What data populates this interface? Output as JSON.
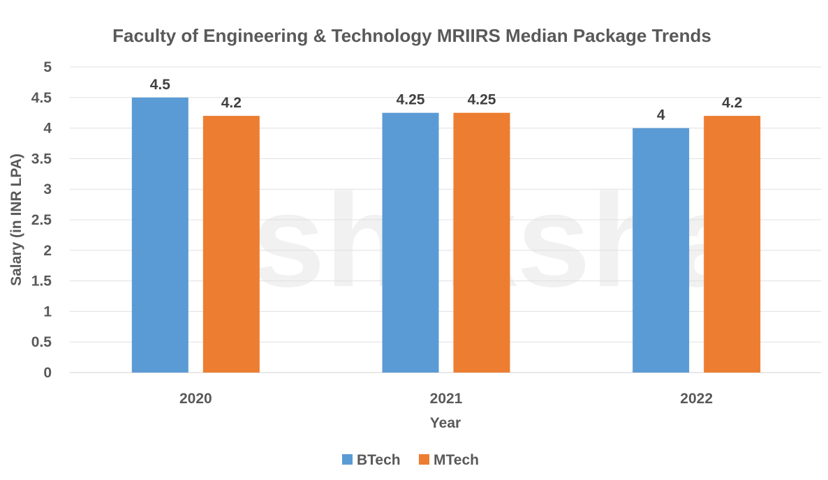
{
  "chart_data": {
    "type": "bar",
    "title": "Faculty of Engineering & Technology MRIIRS Median Package Trends",
    "xlabel": "Year",
    "ylabel": "Salary (in INR LPA)",
    "categories": [
      "2020",
      "2021",
      "2022"
    ],
    "series": [
      {
        "name": "BTech",
        "color": "#5B9BD5",
        "values": [
          4.5,
          4.25,
          4
        ],
        "labels": [
          "4.5",
          "4.25",
          "4"
        ]
      },
      {
        "name": "MTech",
        "color": "#ED7D31",
        "values": [
          4.2,
          4.25,
          4.2
        ],
        "labels": [
          "4.2",
          "4.25",
          "4.2"
        ]
      }
    ],
    "ylim": [
      0,
      5
    ],
    "yticks": [
      "0",
      "0.5",
      "1",
      "1.5",
      "2",
      "2.5",
      "3",
      "3.5",
      "4",
      "4.5",
      "5"
    ],
    "grid": true,
    "legend": "bottom",
    "watermark": "shiksha"
  }
}
